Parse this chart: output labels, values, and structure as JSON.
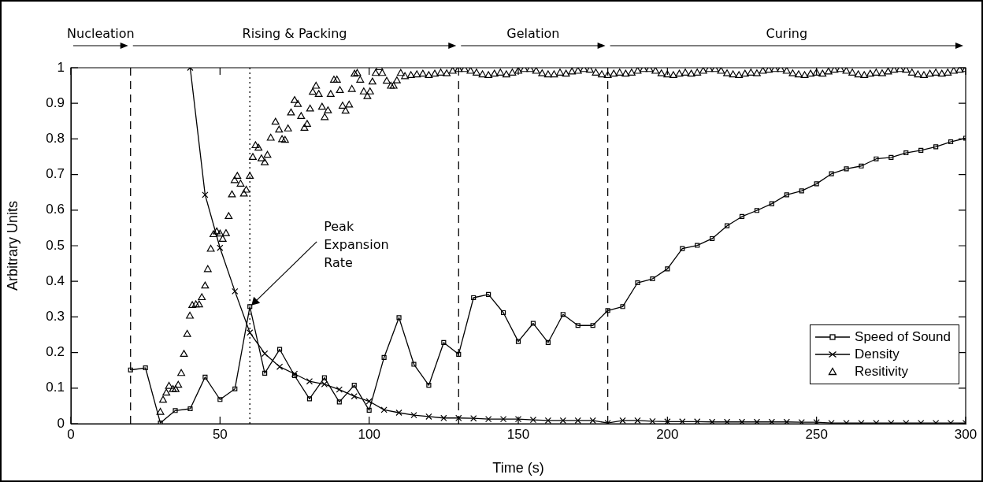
{
  "chart_data": {
    "type": "line",
    "xlabel": "Time (s)",
    "ylabel": "Arbitrary Units",
    "xlim": [
      0,
      300
    ],
    "xticks": [
      0,
      50,
      100,
      150,
      200,
      250,
      300
    ],
    "ylim": [
      0,
      1
    ],
    "yticks": [
      0,
      0.1,
      0.2,
      0.3,
      0.4,
      0.5,
      0.6,
      0.7,
      0.8,
      0.9,
      1
    ],
    "legend": "bottom right",
    "series": [
      {
        "name": "Speed of Sound",
        "type": "line",
        "marker": "square",
        "line_style": "solid",
        "color": "#000000",
        "x": [
          20,
          25,
          30,
          35,
          40,
          45,
          50,
          55,
          60,
          65,
          70,
          75,
          80,
          85,
          90,
          95,
          100,
          105,
          110,
          115,
          120,
          125,
          130,
          135,
          140,
          145,
          150,
          155,
          160,
          165,
          170,
          175,
          180,
          185,
          190,
          195,
          200,
          205,
          210,
          215,
          220,
          225,
          230,
          235,
          240,
          245,
          250,
          255,
          260,
          265,
          270,
          275,
          280,
          285,
          290,
          295,
          300
        ],
        "values": [
          0.151,
          0.157,
          0.002,
          0.037,
          0.042,
          0.131,
          0.068,
          0.098,
          0.329,
          0.142,
          0.209,
          0.135,
          0.07,
          0.129,
          0.061,
          0.108,
          0.038,
          0.186,
          0.298,
          0.167,
          0.108,
          0.228,
          0.195,
          0.354,
          0.363,
          0.312,
          0.231,
          0.282,
          0.228,
          0.307,
          0.276,
          0.276,
          0.318,
          0.329,
          0.396,
          0.407,
          0.435,
          0.492,
          0.501,
          0.52,
          0.556,
          0.582,
          0.599,
          0.618,
          0.643,
          0.654,
          0.674,
          0.702,
          0.716,
          0.724,
          0.744,
          0.748,
          0.761,
          0.768,
          0.778,
          0.792,
          0.802
        ]
      },
      {
        "name": "Density",
        "type": "line",
        "marker": "cross",
        "line_style": "solid",
        "color": "#000000",
        "x": [
          40,
          45,
          50,
          55,
          60,
          65,
          70,
          75,
          80,
          85,
          90,
          95,
          100,
          105,
          110,
          115,
          120,
          125,
          130,
          135,
          140,
          145,
          150,
          155,
          160,
          165,
          170,
          175,
          180,
          185,
          190,
          195,
          200,
          205,
          210,
          215,
          220,
          225,
          230,
          235,
          240,
          245,
          250,
          255,
          260,
          265,
          270,
          275,
          280,
          285,
          290,
          295,
          300
        ],
        "values": [
          1,
          0.643,
          0.494,
          0.372,
          0.256,
          0.197,
          0.16,
          0.14,
          0.119,
          0.111,
          0.096,
          0.077,
          0.063,
          0.039,
          0.031,
          0.024,
          0.02,
          0.016,
          0.016,
          0.015,
          0.013,
          0.013,
          0.013,
          0.011,
          0.009,
          0.009,
          0.009,
          0.009,
          0.002,
          0.009,
          0.009,
          0.007,
          0.006,
          0.006,
          0.006,
          0.005,
          0.005,
          0.005,
          0.005,
          0.005,
          0.005,
          0.004,
          0.004,
          0.002,
          0.002,
          0.002,
          0.002,
          0.002,
          0.002,
          0.002,
          0.002,
          0.002,
          0.002
        ]
      },
      {
        "name": "Resitivity",
        "type": "scatter",
        "marker": "triangle",
        "color": "#000000",
        "x": [
          30,
          30.9,
          32,
          32.9,
          34.2,
          35.1,
          36,
          37,
          37.9,
          39,
          39.9,
          40.7,
          41.9,
          43,
          43.9,
          45,
          45.9,
          46.9,
          47.8,
          48.9,
          50,
          50.9,
          52,
          52.9,
          54,
          54.9,
          55.8,
          56.9,
          58,
          58.8,
          60,
          61,
          61.9,
          62.9,
          63.9,
          65,
          65.9,
          67,
          68.6,
          69.8,
          70.8,
          71.8,
          72.8,
          73.8,
          75,
          76.1,
          77.2,
          78.3,
          79.2,
          80.2,
          81.1,
          82.2,
          83.1,
          84.2,
          85.1,
          86.2,
          87.1,
          88.2,
          89.2,
          90.2,
          91.1,
          92.1,
          93.3,
          94.2,
          95.1,
          96,
          97,
          98.2,
          99.4,
          100.3,
          101.1,
          102.2,
          103.4,
          104.4,
          105.9,
          107.3,
          108.2,
          109.3,
          110.6,
          112,
          114,
          116,
          118,
          120,
          122,
          124,
          126,
          128,
          130,
          132,
          134,
          136,
          138,
          140,
          142,
          144,
          146,
          148,
          150,
          152,
          154,
          156,
          158,
          160,
          162,
          164,
          166,
          168,
          170,
          172,
          174,
          176,
          178,
          180,
          182,
          184,
          186,
          188,
          190,
          192,
          194,
          196,
          198,
          200,
          202,
          204,
          206,
          208,
          210,
          212,
          214,
          216,
          218,
          220,
          222,
          224,
          226,
          228,
          230,
          232,
          234,
          236,
          238,
          240,
          242,
          244,
          246,
          248,
          250,
          252,
          254,
          256,
          258,
          260,
          262,
          264,
          266,
          268,
          270,
          272,
          274,
          276,
          278,
          280,
          282,
          284,
          286,
          288,
          290,
          292,
          294,
          296,
          298,
          300
        ],
        "values": [
          0.032,
          0.066,
          0.086,
          0.105,
          0.096,
          0.096,
          0.108,
          0.141,
          0.195,
          0.251,
          0.302,
          0.332,
          0.334,
          0.334,
          0.354,
          0.387,
          0.433,
          0.49,
          0.531,
          0.539,
          0.533,
          0.518,
          0.534,
          0.582,
          0.643,
          0.683,
          0.695,
          0.673,
          0.645,
          0.656,
          0.695,
          0.748,
          0.781,
          0.774,
          0.744,
          0.733,
          0.754,
          0.802,
          0.847,
          0.825,
          0.798,
          0.796,
          0.828,
          0.873,
          0.908,
          0.897,
          0.863,
          0.83,
          0.841,
          0.884,
          0.931,
          0.948,
          0.925,
          0.889,
          0.86,
          0.879,
          0.925,
          0.965,
          0.965,
          0.936,
          0.892,
          0.878,
          0.895,
          0.939,
          0.982,
          0.984,
          0.965,
          0.932,
          0.919,
          0.932,
          0.96,
          0.984,
          1,
          0.984,
          0.962,
          0.948,
          0.948,
          0.963,
          0.984,
          0.975,
          0.978,
          0.98,
          0.982,
          0.978,
          0.982,
          0.985,
          0.983,
          0.99,
          0.995,
          0.995,
          0.99,
          0.985,
          0.98,
          0.978,
          0.982,
          0.985,
          0.98,
          0.985,
          0.99,
          0.995,
          0.995,
          0.99,
          0.983,
          0.98,
          0.98,
          0.985,
          0.982,
          0.988,
          0.99,
          0.995,
          0.993,
          0.985,
          0.98,
          0.978,
          0.982,
          0.985,
          0.982,
          0.985,
          0.99,
          0.995,
          0.995,
          0.99,
          0.983,
          0.98,
          0.978,
          0.982,
          0.985,
          0.982,
          0.985,
          0.99,
          0.995,
          0.995,
          0.99,
          0.983,
          0.98,
          0.978,
          0.982,
          0.985,
          0.983,
          0.99,
          0.993,
          0.995,
          0.995,
          0.99,
          0.983,
          0.98,
          0.978,
          0.982,
          0.985,
          0.982,
          0.988,
          0.993,
          0.995,
          0.99,
          0.985,
          0.98,
          0.978,
          0.982,
          0.985,
          0.983,
          0.988,
          0.993,
          0.995,
          0.993,
          0.985,
          0.98,
          0.978,
          0.982,
          0.985,
          0.982,
          0.985,
          0.99,
          0.993,
          0.995
        ]
      }
    ],
    "ref_lines": [
      {
        "axis": "x",
        "value": 20,
        "line_style": "dashed",
        "color": "#000000"
      },
      {
        "axis": "x",
        "value": 60,
        "line_style": "dotted",
        "color": "#000000",
        "label": "Peak Expansion Rate"
      },
      {
        "axis": "x",
        "value": 130,
        "line_style": "dashed",
        "color": "#000000"
      },
      {
        "axis": "x",
        "value": 180,
        "line_style": "dashed",
        "color": "#000000"
      }
    ],
    "annotations": [
      "Nucleation",
      "Rising & Packing",
      "Gelation",
      "Curing"
    ]
  }
}
